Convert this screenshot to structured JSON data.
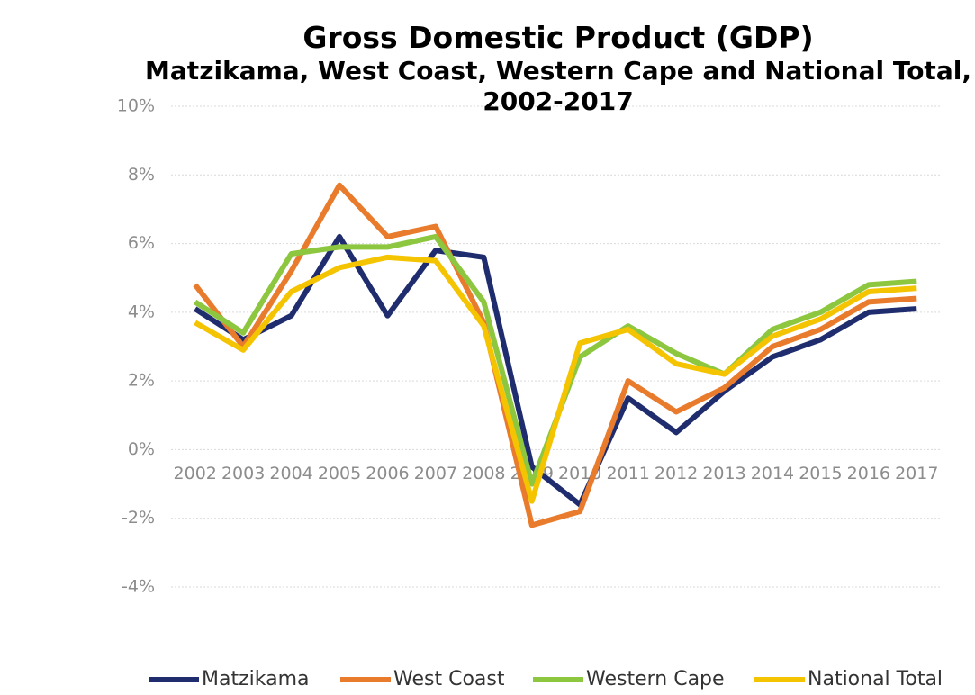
{
  "chart_data": {
    "type": "line",
    "title": "Gross Domestic Product (GDP)",
    "subtitle": "Matzikama, West Coast, Western Cape and National Total, 2002-2017",
    "categories": [
      "2002",
      "2003",
      "2004",
      "2005",
      "2006",
      "2007",
      "2008",
      "2009",
      "2010",
      "2011",
      "2012",
      "2013",
      "2014",
      "2015",
      "2016",
      "2017"
    ],
    "series": [
      {
        "name": "Matzikama",
        "color": "#1f2d6e",
        "values": [
          4.1,
          3.2,
          3.9,
          6.2,
          3.9,
          5.8,
          5.6,
          -0.5,
          -1.6,
          1.5,
          0.5,
          1.7,
          2.7,
          3.2,
          4.0,
          4.1
        ]
      },
      {
        "name": "West Coast",
        "color": "#e97b2c",
        "values": [
          4.8,
          3.0,
          5.2,
          7.7,
          6.2,
          6.5,
          3.7,
          -2.2,
          -1.8,
          2.0,
          1.1,
          1.8,
          3.0,
          3.5,
          4.3,
          4.4
        ]
      },
      {
        "name": "Western Cape",
        "color": "#8dc63f",
        "values": [
          4.3,
          3.4,
          5.7,
          5.9,
          5.9,
          6.2,
          4.3,
          -1.0,
          2.7,
          3.6,
          2.8,
          2.2,
          3.5,
          4.0,
          4.8,
          4.9
        ]
      },
      {
        "name": "National Total",
        "color": "#f5c400",
        "values": [
          3.7,
          2.9,
          4.6,
          5.3,
          5.6,
          5.5,
          3.6,
          -1.5,
          3.1,
          3.5,
          2.5,
          2.2,
          3.3,
          3.8,
          4.6,
          4.7
        ]
      }
    ],
    "ylim": [
      -4,
      10
    ],
    "yticks": [
      {
        "value": -4,
        "label": "-4%"
      },
      {
        "value": -2,
        "label": "-2%"
      },
      {
        "value": 0,
        "label": "0%"
      },
      {
        "value": 2,
        "label": "2%"
      },
      {
        "value": 4,
        "label": "4%"
      },
      {
        "value": 6,
        "label": "6%"
      },
      {
        "value": 8,
        "label": "8%"
      },
      {
        "value": 10,
        "label": "10%"
      }
    ],
    "grid": true,
    "legend": "bottom"
  }
}
